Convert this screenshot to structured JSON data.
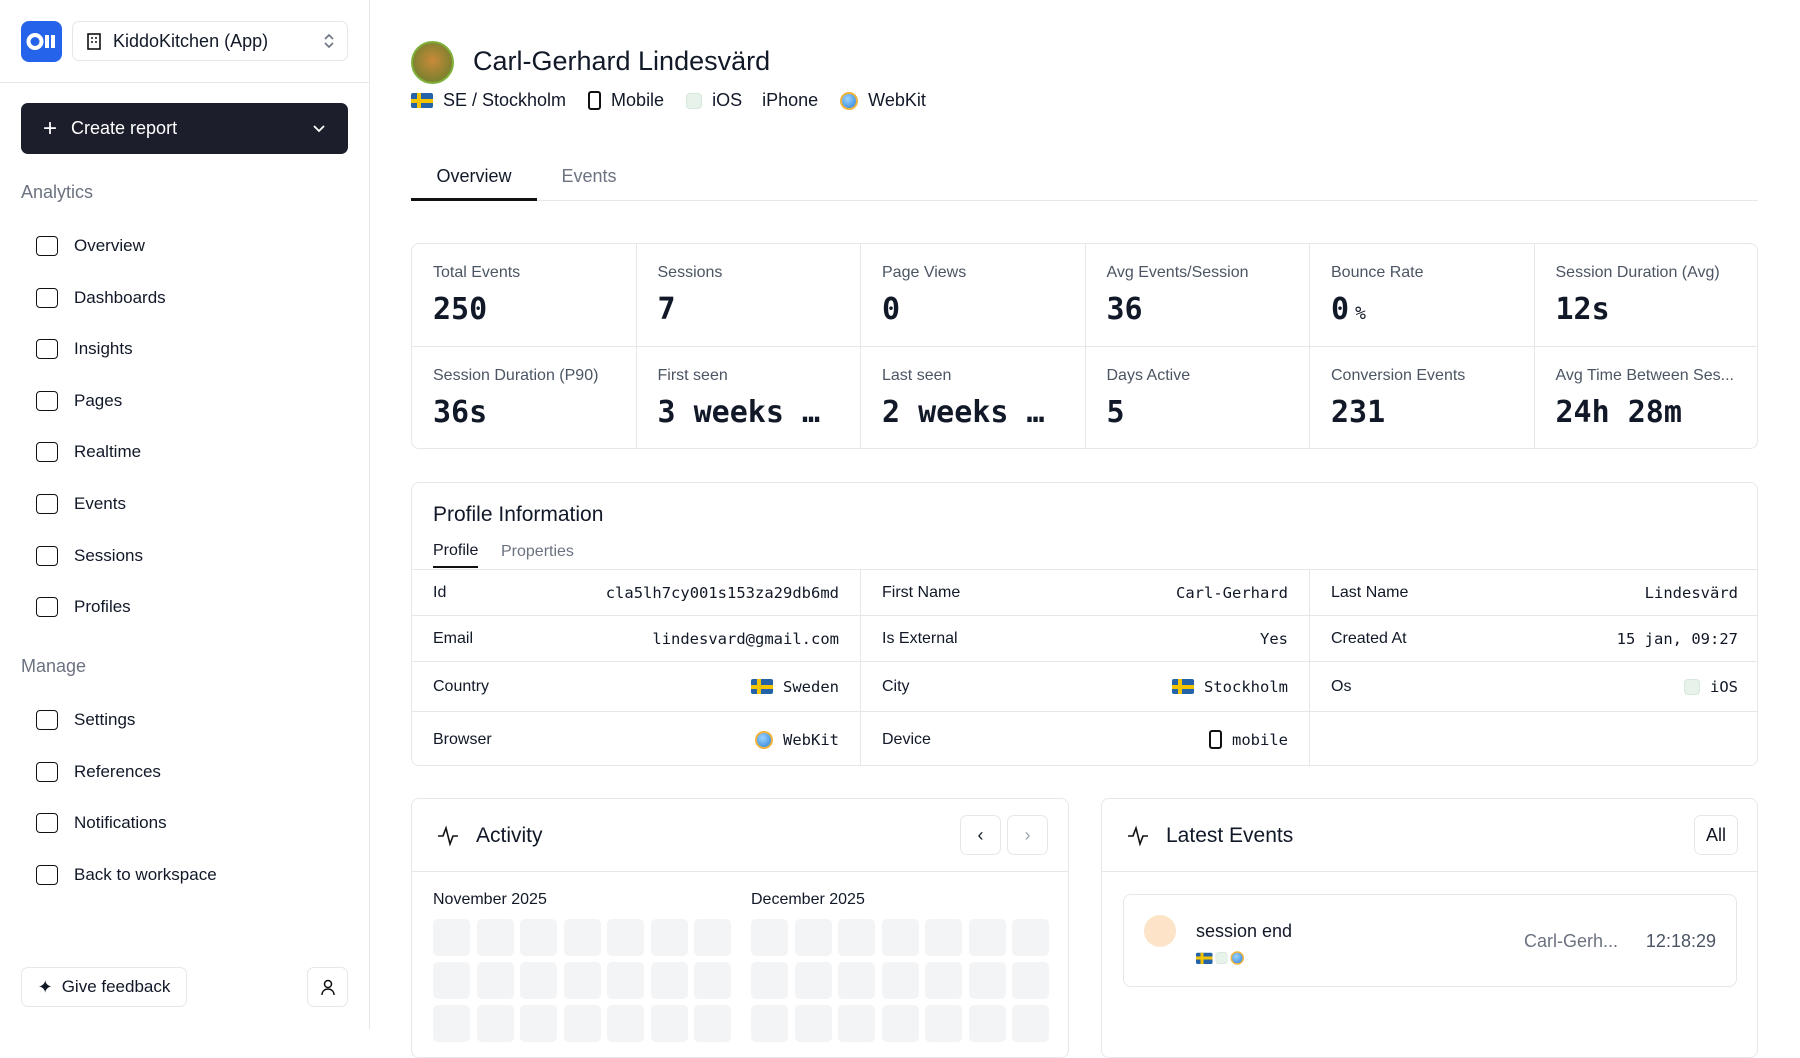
{
  "sidebar": {
    "workspace": "KiddoKitchen (App)",
    "create_report": "Create report",
    "sections": [
      {
        "title": "Analytics",
        "items": [
          "Overview",
          "Dashboards",
          "Insights",
          "Pages",
          "Realtime",
          "Events",
          "Sessions",
          "Profiles"
        ]
      },
      {
        "title": "Manage",
        "items": [
          "Settings",
          "References",
          "Notifications",
          "Back to workspace"
        ]
      }
    ],
    "feedback": "Give feedback"
  },
  "profile": {
    "name": "Carl-Gerhard Lindesvärd",
    "location": "SE / Stockholm",
    "device": "Mobile",
    "os": "iOS",
    "model": "iPhone",
    "browser": "WebKit"
  },
  "tabs": [
    "Overview",
    "Events"
  ],
  "metrics": [
    {
      "label": "Total Events",
      "value": "250"
    },
    {
      "label": "Sessions",
      "value": "7"
    },
    {
      "label": "Page Views",
      "value": "0"
    },
    {
      "label": "Avg Events/Session",
      "value": "36"
    },
    {
      "label": "Bounce Rate",
      "value": "0",
      "unit": "%"
    },
    {
      "label": "Session Duration (Avg)",
      "value": "12s"
    },
    {
      "label": "Session Duration (P90)",
      "value": "36s"
    },
    {
      "label": "First seen",
      "value": "3 weeks …"
    },
    {
      "label": "Last seen",
      "value": "2 weeks …"
    },
    {
      "label": "Days Active",
      "value": "5"
    },
    {
      "label": "Conversion Events",
      "value": "231"
    },
    {
      "label": "Avg Time Between Ses...",
      "value": "24h 28m"
    }
  ],
  "profile_info": {
    "title": "Profile Information",
    "tabs": [
      "Profile",
      "Properties"
    ],
    "rows": [
      [
        {
          "label": "Id",
          "value": "cla5lh7cy001s153za29db6md"
        },
        {
          "label": "First Name",
          "value": "Carl-Gerhard"
        },
        {
          "label": "Last Name",
          "value": "Lindesvärd"
        }
      ],
      [
        {
          "label": "Email",
          "value": "lindesvard@gmail.com"
        },
        {
          "label": "Is External",
          "value": "Yes"
        },
        {
          "label": "Created At",
          "value": "15 jan, 09:27"
        }
      ],
      [
        {
          "label": "Country",
          "value": "Sweden"
        },
        {
          "label": "City",
          "value": "Stockholm"
        },
        {
          "label": "Os",
          "value": "iOS"
        }
      ],
      [
        {
          "label": "Browser",
          "value": "WebKit"
        },
        {
          "label": "Device",
          "value": "mobile"
        }
      ]
    ]
  },
  "activity": {
    "title": "Activity",
    "months": [
      "November 2025",
      "December 2025"
    ]
  },
  "latest_events": {
    "title": "Latest Events",
    "filter": "All",
    "events": [
      {
        "name": "session end",
        "user": "Carl-Gerh...",
        "time": "12:18:29"
      }
    ]
  }
}
